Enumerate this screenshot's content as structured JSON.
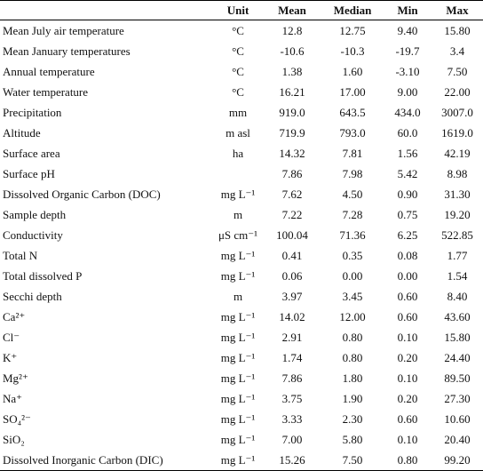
{
  "table": {
    "header": [
      "",
      "Unit",
      "Mean",
      "Median",
      "Min",
      "Max"
    ],
    "rows": [
      [
        "Mean July air temperature",
        "°C",
        "12.8",
        "12.75",
        "9.40",
        "15.80"
      ],
      [
        "Mean January temperatures",
        "°C",
        "-10.6",
        "-10.3",
        "-19.7",
        "3.4"
      ],
      [
        "Annual temperature",
        "°C",
        "1.38",
        "1.60",
        "-3.10",
        "7.50"
      ],
      [
        "Water temperature",
        "°C",
        "16.21",
        "17.00",
        "9.00",
        "22.00"
      ],
      [
        "Precipitation",
        "mm",
        "919.0",
        "643.5",
        "434.0",
        "3007.0"
      ],
      [
        "Altitude",
        "m asl",
        "719.9",
        "793.0",
        "60.0",
        "1619.0"
      ],
      [
        "Surface area",
        "ha",
        "14.32",
        "7.81",
        "1.56",
        "42.19"
      ],
      [
        "Surface pH",
        "",
        "7.86",
        "7.98",
        "5.42",
        "8.98"
      ],
      [
        "Dissolved Organic Carbon (DOC)",
        "mg L⁻¹",
        "7.62",
        "4.50",
        "0.90",
        "31.30"
      ],
      [
        "Sample depth",
        "m",
        "7.22",
        "7.28",
        "0.75",
        "19.20"
      ],
      [
        "Conductivity",
        "μS cm⁻¹",
        "100.04",
        "71.36",
        "6.25",
        "522.85"
      ],
      [
        "Total N",
        "mg L⁻¹",
        "0.41",
        "0.35",
        "0.08",
        "1.77"
      ],
      [
        "Total dissolved P",
        "mg L⁻¹",
        "0.06",
        "0.00",
        "0.00",
        "1.54"
      ],
      [
        "Secchi depth",
        "m",
        "3.97",
        "3.45",
        "0.60",
        "8.40"
      ],
      [
        "Ca²⁺",
        "mg L⁻¹",
        "14.02",
        "12.00",
        "0.60",
        "43.60"
      ],
      [
        "Cl⁻",
        "mg L⁻¹",
        "2.91",
        "0.80",
        "0.10",
        "15.80"
      ],
      [
        "K⁺",
        "mg L⁻¹",
        "1.74",
        "0.80",
        "0.20",
        "24.40"
      ],
      [
        "Mg²⁺",
        "mg L⁻¹",
        "7.86",
        "1.80",
        "0.10",
        "89.50"
      ],
      [
        "Na⁺",
        "mg L⁻¹",
        "3.75",
        "1.90",
        "0.20",
        "27.30"
      ],
      [
        "SO₄²⁻",
        "mg L⁻¹",
        "3.33",
        "2.30",
        "0.60",
        "10.60"
      ],
      [
        "SiO₂",
        "mg L⁻¹",
        "7.00",
        "5.80",
        "0.10",
        "20.40"
      ],
      [
        "Dissolved Inorganic Carbon (DIC)",
        "mg L⁻¹",
        "15.26",
        "7.50",
        "0.80",
        "99.20"
      ]
    ]
  }
}
